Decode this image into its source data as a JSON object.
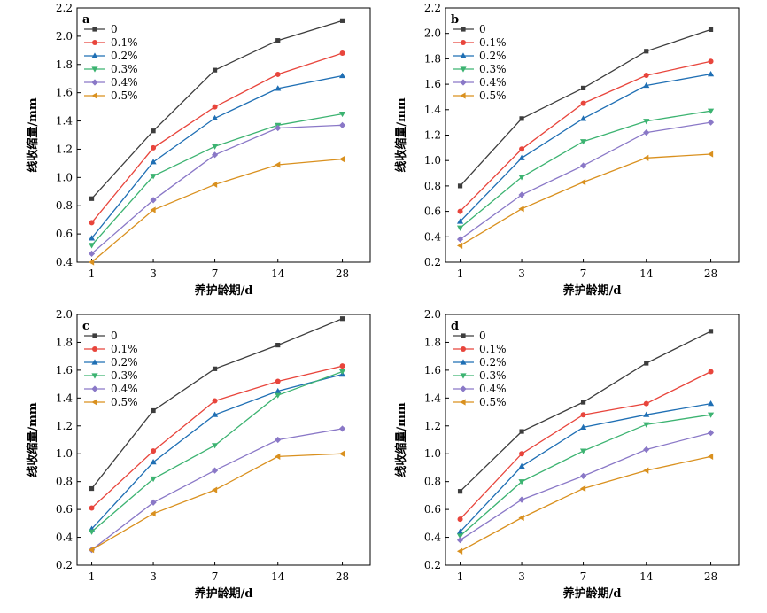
{
  "colors": {
    "s0": "#3d3d3d",
    "s1": "#e8453c",
    "s2": "#1f6fb4",
    "s3": "#3cb371",
    "s4": "#8a78c7",
    "s5": "#d9901e"
  },
  "chart_data": [
    {
      "panel": "a",
      "type": "line",
      "xlabel": "养护龄期/d",
      "ylabel": "线收缩量/mm",
      "categories": [
        "1",
        "3",
        "7",
        "14",
        "28"
      ],
      "ylim": [
        0.4,
        2.2
      ],
      "yticks": [
        "0.4",
        "0.6",
        "0.8",
        "1.0",
        "1.2",
        "1.4",
        "1.6",
        "1.8",
        "2.0",
        "2.2"
      ],
      "legend_position": "top-left",
      "series": [
        {
          "name": "0",
          "color": "#3d3d3d",
          "marker": "square",
          "values": [
            0.85,
            1.33,
            1.76,
            1.97,
            2.11
          ]
        },
        {
          "name": "0.1%",
          "color": "#e8453c",
          "marker": "circle",
          "values": [
            0.68,
            1.21,
            1.5,
            1.73,
            1.88
          ]
        },
        {
          "name": "0.2%",
          "color": "#1f6fb4",
          "marker": "triangle-up",
          "values": [
            0.57,
            1.11,
            1.42,
            1.63,
            1.72
          ]
        },
        {
          "name": "0.3%",
          "color": "#3cb371",
          "marker": "triangle-down",
          "values": [
            0.52,
            1.01,
            1.22,
            1.37,
            1.45
          ]
        },
        {
          "name": "0.4%",
          "color": "#8a78c7",
          "marker": "diamond",
          "values": [
            0.46,
            0.84,
            1.16,
            1.35,
            1.37
          ]
        },
        {
          "name": "0.5%",
          "color": "#d9901e",
          "marker": "triangle-left",
          "values": [
            0.4,
            0.77,
            0.95,
            1.09,
            1.13
          ]
        }
      ]
    },
    {
      "panel": "b",
      "type": "line",
      "xlabel": "养护龄期/d",
      "ylabel": "线收缩量/mm",
      "categories": [
        "1",
        "3",
        "7",
        "14",
        "28"
      ],
      "ylim": [
        0.2,
        2.2
      ],
      "yticks": [
        "0.2",
        "0.4",
        "0.6",
        "0.8",
        "1.0",
        "1.2",
        "1.4",
        "1.6",
        "1.8",
        "2.0",
        "2.2"
      ],
      "legend_position": "top-left",
      "series": [
        {
          "name": "0",
          "color": "#3d3d3d",
          "marker": "square",
          "values": [
            0.8,
            1.33,
            1.57,
            1.86,
            2.03
          ]
        },
        {
          "name": "0.1%",
          "color": "#e8453c",
          "marker": "circle",
          "values": [
            0.6,
            1.09,
            1.45,
            1.67,
            1.78
          ]
        },
        {
          "name": "0.2%",
          "color": "#1f6fb4",
          "marker": "triangle-up",
          "values": [
            0.52,
            1.02,
            1.33,
            1.59,
            1.68
          ]
        },
        {
          "name": "0.3%",
          "color": "#3cb371",
          "marker": "triangle-down",
          "values": [
            0.47,
            0.87,
            1.15,
            1.31,
            1.39
          ]
        },
        {
          "name": "0.4%",
          "color": "#8a78c7",
          "marker": "diamond",
          "values": [
            0.38,
            0.73,
            0.96,
            1.22,
            1.3
          ]
        },
        {
          "name": "0.5%",
          "color": "#d9901e",
          "marker": "triangle-left",
          "values": [
            0.33,
            0.62,
            0.83,
            1.02,
            1.05
          ]
        }
      ]
    },
    {
      "panel": "c",
      "type": "line",
      "xlabel": "养护龄期/d",
      "ylabel": "线收缩量/mm",
      "categories": [
        "1",
        "3",
        "7",
        "14",
        "28"
      ],
      "ylim": [
        0.2,
        2.0
      ],
      "yticks": [
        "0.2",
        "0.4",
        "0.6",
        "0.8",
        "1.0",
        "1.2",
        "1.4",
        "1.6",
        "1.8",
        "2.0"
      ],
      "legend_position": "top-left",
      "series": [
        {
          "name": "0",
          "color": "#3d3d3d",
          "marker": "square",
          "values": [
            0.75,
            1.31,
            1.61,
            1.78,
            1.97
          ]
        },
        {
          "name": "0.1%",
          "color": "#e8453c",
          "marker": "circle",
          "values": [
            0.61,
            1.02,
            1.38,
            1.52,
            1.63
          ]
        },
        {
          "name": "0.2%",
          "color": "#1f6fb4",
          "marker": "triangle-up",
          "values": [
            0.46,
            0.94,
            1.28,
            1.45,
            1.57
          ]
        },
        {
          "name": "0.3%",
          "color": "#3cb371",
          "marker": "triangle-down",
          "values": [
            0.44,
            0.82,
            1.06,
            1.42,
            1.59
          ]
        },
        {
          "name": "0.4%",
          "color": "#8a78c7",
          "marker": "diamond",
          "values": [
            0.31,
            0.65,
            0.88,
            1.1,
            1.18
          ]
        },
        {
          "name": "0.5%",
          "color": "#d9901e",
          "marker": "triangle-left",
          "values": [
            0.31,
            0.57,
            0.74,
            0.98,
            1.0
          ]
        }
      ]
    },
    {
      "panel": "d",
      "type": "line",
      "xlabel": "养护龄期/d",
      "ylabel": "线收缩量/mm",
      "categories": [
        "1",
        "3",
        "7",
        "14",
        "28"
      ],
      "ylim": [
        0.2,
        2.0
      ],
      "yticks": [
        "0.2",
        "0.4",
        "0.6",
        "0.8",
        "1.0",
        "1.2",
        "1.4",
        "1.6",
        "1.8",
        "2.0"
      ],
      "legend_position": "top-left",
      "series": [
        {
          "name": "0",
          "color": "#3d3d3d",
          "marker": "square",
          "values": [
            0.73,
            1.16,
            1.37,
            1.65,
            1.88
          ]
        },
        {
          "name": "0.1%",
          "color": "#e8453c",
          "marker": "circle",
          "values": [
            0.53,
            1.0,
            1.28,
            1.36,
            1.59
          ]
        },
        {
          "name": "0.2%",
          "color": "#1f6fb4",
          "marker": "triangle-up",
          "values": [
            0.44,
            0.91,
            1.19,
            1.28,
            1.36
          ]
        },
        {
          "name": "0.3%",
          "color": "#3cb371",
          "marker": "triangle-down",
          "values": [
            0.41,
            0.8,
            1.02,
            1.21,
            1.28
          ]
        },
        {
          "name": "0.4%",
          "color": "#8a78c7",
          "marker": "diamond",
          "values": [
            0.38,
            0.67,
            0.84,
            1.03,
            1.15
          ]
        },
        {
          "name": "0.5%",
          "color": "#d9901e",
          "marker": "triangle-left",
          "values": [
            0.3,
            0.54,
            0.75,
            0.88,
            0.98
          ]
        }
      ]
    }
  ]
}
